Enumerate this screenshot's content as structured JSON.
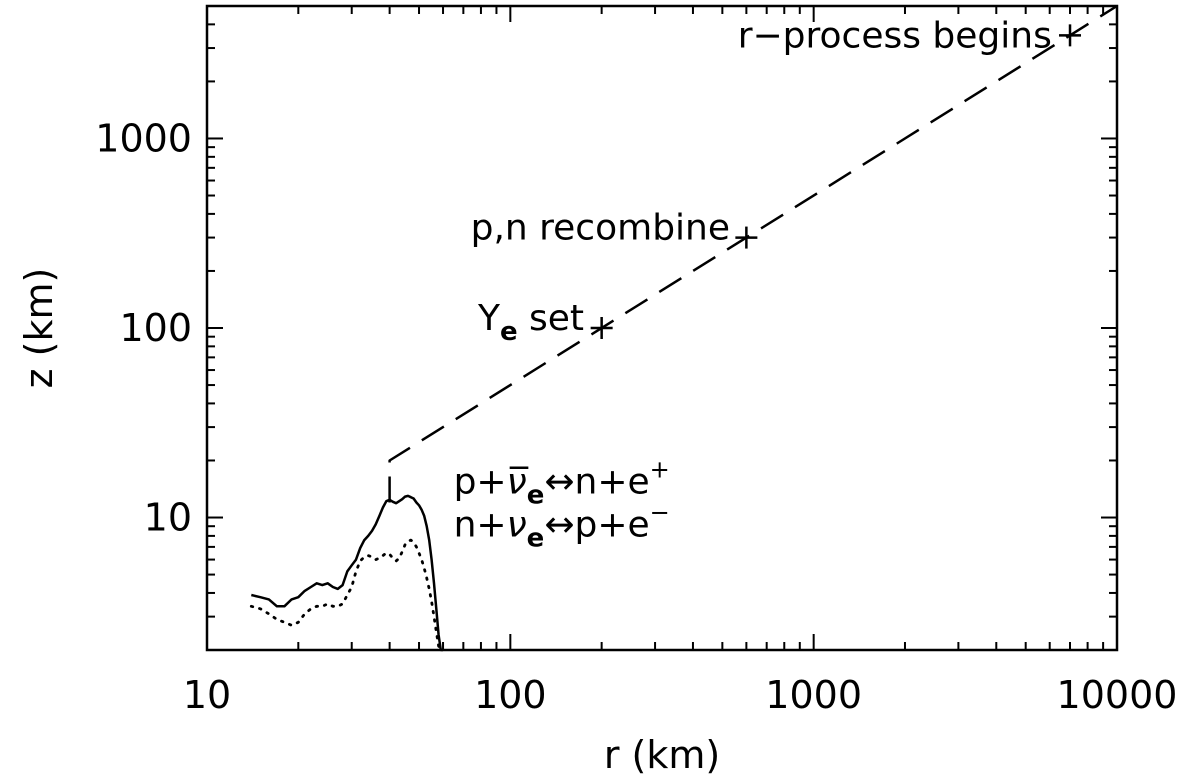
{
  "chart_data": {
    "type": "line",
    "xlabel": "r (km)",
    "ylabel": "z (km)",
    "xscale": "log",
    "yscale": "log",
    "xlim": [
      10,
      10000
    ],
    "ylim": [
      2,
      5000
    ],
    "x_ticks": [
      "10",
      "100",
      "1000",
      "10000"
    ],
    "y_ticks": [
      "10",
      "100",
      "1000"
    ],
    "grid": false,
    "series": [
      {
        "style": "solid",
        "x": [
          14,
          15,
          16,
          17,
          18,
          19,
          20,
          21,
          22,
          23,
          24,
          25,
          26,
          27,
          28,
          29,
          30,
          31,
          32,
          33,
          34,
          35,
          36,
          37,
          38,
          39,
          40,
          41,
          42,
          43,
          44,
          45,
          46,
          47,
          48,
          49,
          50,
          51,
          52,
          53,
          54,
          55,
          56,
          57,
          58,
          59,
          60
        ],
        "y": [
          3.9,
          3.8,
          3.7,
          3.4,
          3.4,
          3.7,
          3.8,
          4.1,
          4.3,
          4.5,
          4.4,
          4.5,
          4.3,
          4.2,
          4.4,
          5.2,
          5.6,
          6.0,
          6.9,
          7.6,
          8.0,
          8.5,
          9.2,
          10.2,
          11.3,
          12.2,
          12.4,
          12.1,
          11.9,
          12.2,
          12.5,
          12.9,
          13.0,
          12.8,
          12.6,
          12.0,
          11.6,
          11.0,
          10.2,
          9.0,
          7.6,
          6.0,
          4.5,
          3.3,
          2.4,
          2.0,
          1.6
        ]
      },
      {
        "style": "dotted",
        "x": [
          14,
          15,
          16,
          17,
          18,
          19,
          20,
          21,
          22,
          23,
          24,
          25,
          26,
          27,
          28,
          29,
          30,
          31,
          32,
          33,
          34,
          35,
          36,
          37,
          38,
          39,
          40,
          41,
          42,
          43,
          44,
          45,
          46,
          47,
          48,
          49,
          50,
          51,
          52,
          53,
          54,
          55,
          56,
          57,
          58,
          59,
          60
        ],
        "y": [
          3.4,
          3.3,
          3.1,
          2.9,
          2.8,
          2.7,
          2.8,
          3.1,
          3.3,
          3.4,
          3.4,
          3.5,
          3.4,
          3.4,
          3.5,
          3.9,
          4.3,
          5.2,
          5.9,
          6.2,
          6.3,
          6.2,
          6.0,
          6.1,
          6.3,
          6.5,
          6.4,
          6.1,
          5.9,
          6.1,
          6.6,
          7.2,
          7.5,
          7.6,
          7.4,
          7.0,
          6.5,
          6.0,
          5.4,
          4.8,
          4.2,
          3.6,
          3.0,
          2.5,
          2.1,
          1.9,
          1.6
        ]
      },
      {
        "style": "dashed",
        "x": [
          40,
          40,
          10000
        ],
        "y": [
          12,
          20,
          5000
        ]
      }
    ],
    "markers": [
      {
        "x": 200,
        "y": 100,
        "symbol": "+"
      },
      {
        "x": 600,
        "y": 300,
        "symbol": "+"
      },
      {
        "x": 7000,
        "y": 3500,
        "symbol": "+"
      }
    ],
    "annotations": {
      "rprocess": {
        "text": "r−process begins",
        "x": 6100,
        "y": 3500
      },
      "pn": {
        "text": "p,n recombine",
        "x": 530,
        "y": 300
      },
      "ye": {
        "main": "Y",
        "sub": "e",
        "rest": " set",
        "x": 175,
        "y": 100
      },
      "reaction1": {
        "p1": "p+",
        "nu": "ν̅",
        "sub": "e",
        "arrow": "↔n+e",
        "sup": "+",
        "x": 65,
        "y": 15.5
      },
      "reaction2": {
        "p1": "n+",
        "nu": "ν",
        "sub": "e",
        "arrow": "↔p+e",
        "sup": "−",
        "x": 65,
        "y": 9.2
      }
    }
  }
}
